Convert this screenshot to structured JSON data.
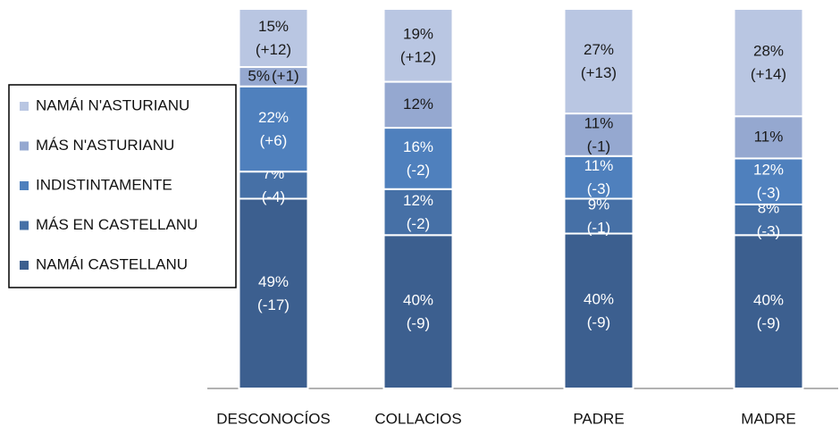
{
  "chart_data": {
    "type": "bar",
    "stacked": "percent",
    "categories": [
      "DESCONOCÍOS",
      "COLLACIOS",
      "PADRE",
      "MADRE"
    ],
    "series": [
      {
        "name": "NAMÁI CASTELLANU",
        "color": "#3c5f8f",
        "label_color": "#ffffff",
        "values": [
          49,
          40,
          40,
          40
        ],
        "value_labels": [
          "49%",
          "40%",
          "40%",
          "40%"
        ],
        "changes": [
          -17,
          -9,
          -9,
          -9
        ],
        "change_labels": [
          "(-17)",
          "(-9)",
          "(-9)",
          "(-9)"
        ]
      },
      {
        "name": "MÁS EN CASTELLANU",
        "color": "#4670a6",
        "label_color": "#ffffff",
        "values": [
          7,
          12,
          9,
          8
        ],
        "value_labels": [
          "7%",
          "12%",
          "9%",
          "8%"
        ],
        "changes": [
          -4,
          -2,
          -1,
          -3
        ],
        "change_labels": [
          "(-4)",
          "(-2)",
          "(-1)",
          "(-3)"
        ]
      },
      {
        "name": "INDISTINTAMENTE",
        "color": "#4f80bd",
        "label_color": "#ffffff",
        "values": [
          22,
          16,
          11,
          12
        ],
        "value_labels": [
          "22%",
          "16%",
          "11%",
          "12%"
        ],
        "changes": [
          6,
          -2,
          -3,
          -3
        ],
        "change_labels": [
          "(+6)",
          "(-2)",
          "(-3)",
          "(-3)"
        ]
      },
      {
        "name": "MÁS N'ASTURIANU",
        "color": "#95a8d0",
        "label_color": "#1a1a1a",
        "values": [
          5,
          12,
          11,
          11
        ],
        "value_labels": [
          "5%",
          "12%",
          "11%",
          "11%"
        ],
        "changes": [
          1,
          null,
          -1,
          null
        ],
        "change_labels": [
          "(+1)",
          null,
          "(-1)",
          null
        ]
      },
      {
        "name": "NAMÁI N'ASTURIANU",
        "color": "#b9c6e2",
        "label_color": "#1a1a1a",
        "values": [
          15,
          19,
          27,
          28
        ],
        "value_labels": [
          "15%",
          "19%",
          "27%",
          "28%"
        ],
        "changes": [
          12,
          12,
          13,
          14
        ],
        "change_labels": [
          "(+12)",
          "(+12)",
          "(+13)",
          "(+14)"
        ]
      }
    ],
    "legend": "left"
  }
}
